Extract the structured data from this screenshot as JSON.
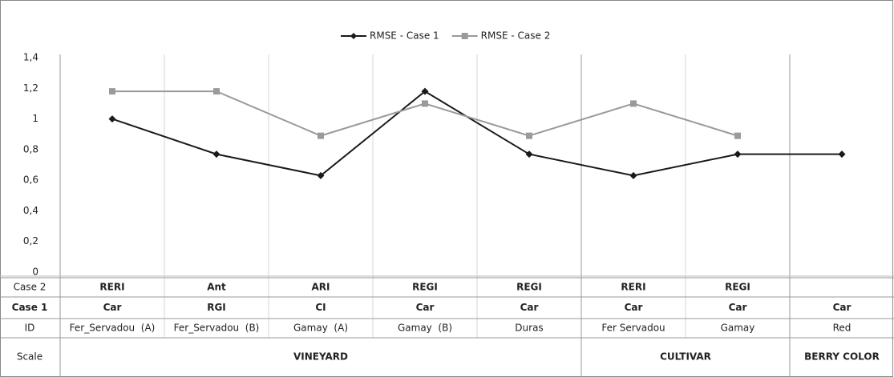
{
  "chart_data": {
    "type": "line",
    "categories": [
      "Fer_Servadou  (A)",
      "Fer_Servadou  (B)",
      "Gamay  (A)",
      "Gamay  (B)",
      "Duras",
      "Fer Servadou",
      "Gamay",
      "Red"
    ],
    "series": [
      {
        "name": "RMSE - Case 1",
        "color": "#1a1a1a",
        "marker": "diamond",
        "values": [
          1.0,
          0.77,
          0.63,
          1.18,
          0.77,
          0.63,
          0.77,
          0.77
        ]
      },
      {
        "name": "RMSE - Case 2",
        "color": "#9a9a9a",
        "marker": "square",
        "values": [
          1.18,
          1.18,
          0.89,
          1.1,
          0.89,
          1.1,
          0.89,
          null
        ]
      }
    ],
    "ylim": [
      0,
      1.4
    ],
    "yticks": [
      0,
      {
        "value": 0.2,
        "label": "0,2"
      },
      {
        "value": 0.4,
        "label": "0,4"
      },
      {
        "value": 0.6,
        "label": "0,6"
      },
      {
        "value": 0.8,
        "label": "0,8"
      },
      1,
      {
        "value": 1.2,
        "label": "1,2"
      },
      {
        "value": 1.4,
        "label": "1,4"
      }
    ],
    "legend": "top"
  },
  "table": {
    "row_headers": [
      "Case 2",
      "Case 1",
      "ID",
      "Scale"
    ],
    "case2": [
      "RERI",
      "Ant",
      "ARI",
      "REGI",
      "REGI",
      "RERI",
      "REGI",
      null
    ],
    "case1": [
      "Car",
      "RGI",
      "CI",
      "Car",
      "Car",
      "Car",
      "Car",
      "Car"
    ],
    "scale": [
      {
        "label": "VINEYARD",
        "span": 5
      },
      {
        "label": "CULTIVAR",
        "span": 2
      },
      {
        "label": "BERRY COLOR",
        "span": 1
      }
    ]
  }
}
